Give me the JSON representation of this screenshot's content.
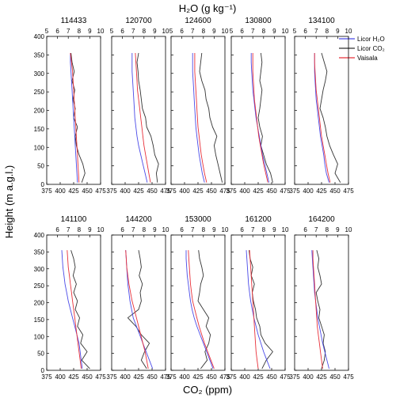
{
  "figure": {
    "top_axis_label": "H₂O (g kg⁻¹)",
    "bottom_axis_label": "CO₂ (ppm)",
    "y_axis_label": "Height (m a.g.l.)",
    "legend": [
      "Licor H₂O",
      "Licor CO₂",
      "Vaisala"
    ]
  },
  "colors": {
    "licor_h2o": "#4a4ae8",
    "licor_co2": "#333333",
    "vaisala": "#e8303a"
  },
  "chart_data": {
    "type": "line",
    "y": [
      0,
      25,
      50,
      75,
      100,
      125,
      150,
      175,
      200,
      225,
      250,
      275,
      300,
      325,
      350
    ],
    "xlim_co2": [
      375,
      475
    ],
    "xlim_h2o": [
      5,
      10
    ],
    "ylim": [
      0,
      400
    ],
    "co2_ticks": [
      "375",
      "400",
      "425",
      "450",
      "475"
    ],
    "h2o_ticks": [
      "5",
      "6",
      "7",
      "8",
      "9",
      "10"
    ],
    "h2o_ticks_bottom_row": [
      "6",
      "7",
      "8",
      "9",
      "10"
    ],
    "y_ticks": [
      "0",
      "50",
      "100",
      "150",
      "200",
      "250",
      "300",
      "350",
      "400"
    ],
    "legend_placement": "top-right of last panel",
    "panels": [
      {
        "title": "114433",
        "licor_h2o": [
          7.85,
          7.8,
          7.75,
          7.7,
          7.65,
          7.6,
          7.55,
          7.5,
          7.45,
          7.4,
          7.35,
          7.3,
          7.25,
          7.2,
          7.2
        ],
        "vaisala": [
          8.0,
          7.95,
          7.9,
          7.85,
          7.8,
          7.75,
          7.7,
          7.65,
          7.6,
          7.55,
          7.5,
          7.45,
          7.4,
          7.3,
          7.2
        ],
        "licor_co2": [
          440,
          446,
          442,
          435,
          430,
          428,
          432,
          425,
          428,
          424,
          427,
          422,
          426,
          422,
          420
        ]
      },
      {
        "title": "120700",
        "licor_h2o": [
          8.3,
          8.1,
          7.9,
          7.7,
          7.5,
          7.35,
          7.25,
          7.15,
          7.1,
          7.05,
          7.0,
          6.95,
          6.9,
          6.9,
          6.9
        ],
        "vaisala": [
          8.6,
          8.45,
          8.3,
          8.15,
          8.0,
          7.9,
          7.8,
          7.7,
          7.6,
          7.5,
          7.4,
          7.35,
          7.3,
          7.25,
          7.2
        ],
        "licor_co2": [
          460,
          458,
          462,
          455,
          452,
          448,
          440,
          438,
          432,
          430,
          428,
          425,
          424,
          422,
          425
        ]
      },
      {
        "title": "124600",
        "licor_h2o": [
          8.1,
          7.9,
          7.75,
          7.6,
          7.5,
          7.4,
          7.3,
          7.25,
          7.2,
          7.15,
          7.1,
          7.05,
          7.0,
          7.0,
          7.0
        ],
        "vaisala": [
          8.3,
          8.1,
          7.95,
          7.8,
          7.7,
          7.6,
          7.5,
          7.45,
          7.4,
          7.35,
          7.3,
          7.25,
          7.2,
          7.2,
          7.2
        ],
        "licor_co2": [
          470,
          466,
          462,
          458,
          455,
          460,
          452,
          447,
          445,
          440,
          438,
          432,
          428,
          430,
          432
        ]
      },
      {
        "title": "130800",
        "licor_h2o": [
          8.5,
          8.3,
          8.1,
          7.9,
          7.75,
          7.6,
          7.45,
          7.3,
          7.2,
          7.1,
          7.0,
          6.95,
          6.9,
          6.85,
          6.85
        ],
        "vaisala": [
          8.4,
          8.2,
          8.0,
          7.85,
          7.7,
          7.55,
          7.45,
          7.35,
          7.25,
          7.15,
          7.1,
          7.05,
          7.0,
          7.0,
          7.0
        ],
        "licor_co2": [
          452,
          448,
          440,
          435,
          430,
          433,
          428,
          425,
          428,
          430,
          432,
          428,
          430,
          432,
          430
        ]
      },
      {
        "title": "134100",
        "licor_h2o": [
          8.2,
          7.95,
          7.8,
          7.7,
          7.55,
          7.4,
          7.3,
          7.2,
          7.1,
          7.0,
          6.95,
          6.9,
          6.85,
          6.85,
          6.85
        ],
        "vaisala": [
          8.3,
          8.1,
          7.95,
          7.8,
          7.65,
          7.5,
          7.4,
          7.3,
          7.2,
          7.1,
          7.0,
          6.95,
          6.9,
          6.85,
          6.85
        ],
        "licor_co2": [
          460,
          450,
          455,
          447,
          440,
          435,
          432,
          428,
          422,
          425,
          428,
          432,
          435,
          430,
          425
        ]
      },
      {
        "title": "141100",
        "licor_h2o": [
          8.3,
          8.2,
          8.1,
          8.0,
          7.8,
          7.6,
          7.4,
          7.2,
          7.0,
          6.85,
          6.7,
          6.6,
          6.5,
          6.45,
          6.4
        ],
        "vaisala": [
          8.2,
          8.1,
          8.0,
          7.9,
          7.8,
          7.7,
          7.6,
          7.5,
          7.4,
          7.3,
          7.2,
          7.1,
          7.0,
          6.95,
          6.9
        ],
        "licor_co2": [
          455,
          440,
          450,
          438,
          442,
          432,
          436,
          428,
          432,
          425,
          430,
          424,
          428,
          425,
          420
        ]
      },
      {
        "title": "144200",
        "licor_h2o": [
          8.8,
          8.5,
          8.2,
          7.9,
          7.6,
          7.3,
          7.0,
          6.85,
          6.7,
          6.6,
          6.5,
          6.45,
          6.4,
          6.35,
          6.3
        ],
        "vaisala": [
          8.4,
          8.25,
          8.1,
          7.9,
          7.7,
          7.5,
          7.3,
          7.1,
          6.9,
          6.75,
          6.6,
          6.5,
          6.4,
          6.35,
          6.3
        ],
        "licor_co2": [
          440,
          430,
          436,
          445,
          430,
          420,
          405,
          425,
          430,
          428,
          432,
          426,
          430,
          428,
          425
        ]
      },
      {
        "title": "153000",
        "licor_h2o": [
          8.9,
          8.6,
          8.3,
          8.0,
          7.7,
          7.4,
          7.15,
          6.95,
          6.8,
          6.7,
          6.6,
          6.5,
          6.45,
          6.4,
          6.4
        ],
        "vaisala": [
          9.0,
          8.7,
          8.4,
          8.1,
          7.85,
          7.6,
          7.4,
          7.2,
          7.0,
          6.9,
          6.8,
          6.75,
          6.7,
          6.65,
          6.6
        ],
        "licor_co2": [
          430,
          442,
          438,
          445,
          448,
          440,
          445,
          435,
          425,
          428,
          430,
          435,
          432,
          428,
          426
        ]
      },
      {
        "title": "161200",
        "licor_h2o": [
          8.6,
          8.3,
          8.0,
          7.75,
          7.5,
          7.3,
          7.1,
          6.95,
          6.8,
          6.7,
          6.6,
          6.55,
          6.5,
          6.45,
          6.4
        ],
        "vaisala": [
          7.5,
          7.4,
          7.3,
          7.25,
          7.2,
          7.15,
          7.1,
          7.05,
          7.0,
          6.95,
          6.9,
          6.85,
          6.8,
          6.75,
          6.7
        ],
        "licor_co2": [
          432,
          440,
          452,
          438,
          430,
          428,
          422,
          420,
          416,
          414,
          418,
          412,
          415,
          410,
          408
        ]
      },
      {
        "title": "164200",
        "licor_h2o": [
          8.2,
          8.0,
          7.8,
          7.6,
          7.45,
          7.3,
          7.15,
          7.05,
          6.95,
          6.85,
          6.8,
          6.75,
          6.7,
          6.65,
          6.6
        ],
        "vaisala": [
          7.6,
          7.5,
          7.4,
          7.3,
          7.2,
          7.1,
          7.05,
          7.0,
          6.95,
          6.9,
          6.85,
          6.8,
          6.75,
          6.7,
          6.7
        ],
        "licor_co2": [
          425,
          430,
          432,
          428,
          430,
          425,
          420,
          422,
          418,
          415,
          425,
          422,
          418,
          420,
          416
        ]
      }
    ]
  }
}
